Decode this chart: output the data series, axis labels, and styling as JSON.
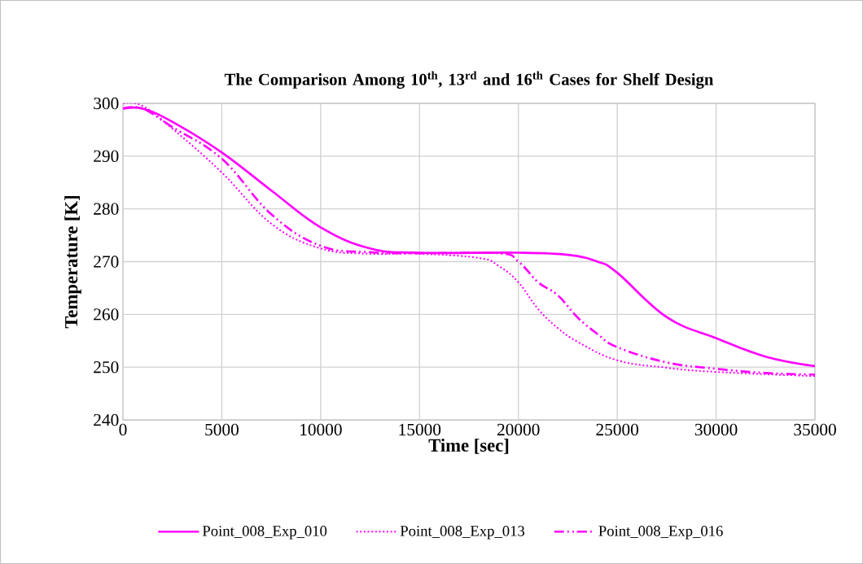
{
  "chart_data": {
    "type": "line",
    "title": "The Comparison Among 10$^{th}$, 13$^{rd}$ and 16$^{th}$ Cases for Shelf Design",
    "xlabel": "Time [sec]",
    "ylabel": "Temperature [K]",
    "xlim": [
      0,
      35000
    ],
    "xticks": [
      0,
      5000,
      10000,
      15000,
      20000,
      25000,
      30000,
      35000
    ],
    "ylim": [
      240,
      300
    ],
    "yticks": [
      240,
      250,
      260,
      270,
      280,
      290,
      300
    ],
    "grid": true,
    "legend": "bottom",
    "marker": "none",
    "series": [
      {
        "name": "Point_008_Exp_010",
        "color": "#ff00ff",
        "line_style": "solid",
        "x": [
          0,
          1000,
          2500,
          5000,
          7500,
          10000,
          12500,
          15000,
          20000,
          22500,
          24000,
          25000,
          27500,
          30000,
          32500,
          35000
        ],
        "values": [
          299,
          299,
          296.5,
          290.7,
          283.5,
          276.5,
          272.5,
          271.7,
          271.7,
          271.3,
          270,
          267.9,
          259.5,
          255.5,
          252,
          250.2
        ]
      },
      {
        "name": "Point_008_Exp_013",
        "color": "#ff00ff",
        "line_style": "dotted",
        "x": [
          0,
          1000,
          2500,
          5000,
          7500,
          10000,
          12500,
          15000,
          18000,
          19000,
          20000,
          21000,
          22000,
          23000,
          25000,
          27500,
          30000,
          35000
        ],
        "values": [
          300,
          299.5,
          295.2,
          286.9,
          277.2,
          272.5,
          271.5,
          271.5,
          270.7,
          269.2,
          266.1,
          261,
          257.4,
          254.8,
          251.3,
          249.9,
          249.1,
          248.3
        ]
      },
      {
        "name": "Point_008_Exp_016",
        "color": "#ff00ff",
        "line_style": "dashdot",
        "x": [
          0,
          1000,
          2500,
          5000,
          7500,
          10000,
          12500,
          15000,
          19000,
          20000,
          21000,
          22000,
          23000,
          24000,
          25000,
          27500,
          30000,
          32500,
          35000
        ],
        "values": [
          299,
          299,
          295.5,
          289.5,
          279,
          273,
          271.8,
          271.6,
          271.6,
          270,
          266.1,
          263.6,
          259.4,
          256.3,
          253.8,
          250.9,
          249.7,
          248.9,
          248.6
        ]
      }
    ]
  }
}
